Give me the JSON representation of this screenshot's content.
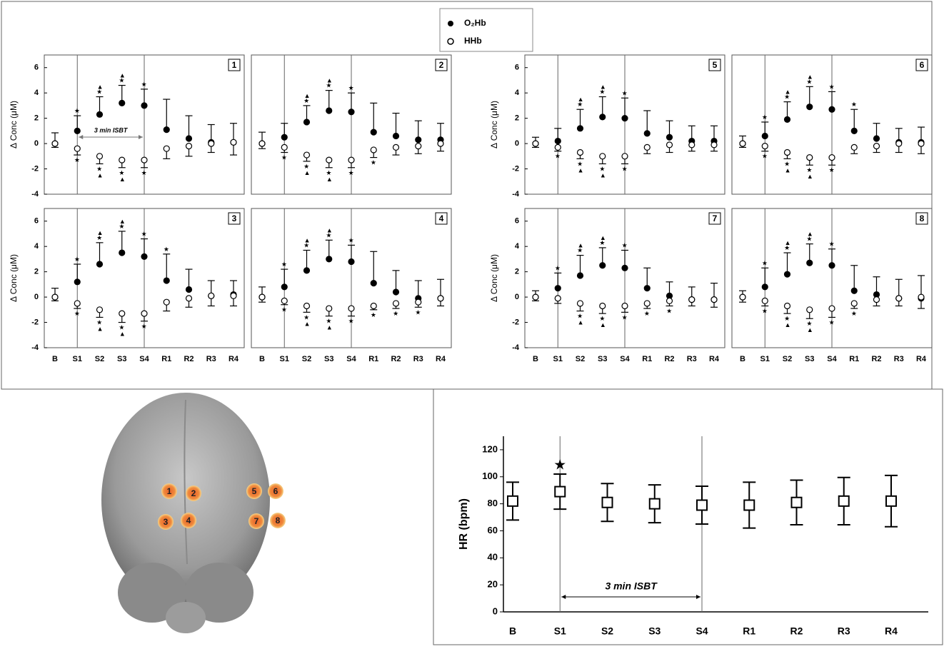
{
  "chart_data": [
    {
      "type": "errorbar",
      "panel_label": "1",
      "ylabel": "Δ Conc (μM)",
      "ylim": [
        -4,
        7
      ],
      "yticks": [
        -4,
        -2,
        0,
        2,
        4,
        6
      ],
      "vline_at": [
        1,
        4
      ],
      "annotation": "3 min ISBT",
      "series": [
        {
          "name": "O₂Hb",
          "color": "#000000",
          "marker": "filled",
          "direction": "up",
          "values": [
            0,
            1.0,
            2.3,
            3.2,
            3.0,
            1.1,
            0.4,
            0.1,
            0.1
          ],
          "errors": [
            0.85,
            1.2,
            1.4,
            1.4,
            1.3,
            2.4,
            1.8,
            1.4,
            1.5
          ],
          "significance": [
            null,
            "★",
            "▲★",
            "▲★",
            "★",
            null,
            null,
            null,
            null
          ]
        },
        {
          "name": "HHb",
          "color": "#000000",
          "marker": "open",
          "direction": "down",
          "values": [
            0,
            -0.4,
            -1.0,
            -1.3,
            -1.3,
            -0.4,
            -0.2,
            0,
            0.1
          ],
          "errors": [
            0.3,
            0.5,
            0.6,
            0.6,
            0.6,
            0.8,
            0.8,
            0.7,
            1.0
          ],
          "significance": [
            null,
            "★",
            "★▲",
            "★▲",
            "★",
            null,
            null,
            null,
            null
          ]
        }
      ]
    },
    {
      "type": "errorbar",
      "panel_label": "2",
      "ylim": [
        -4,
        7
      ],
      "vline_at": [
        1,
        4
      ],
      "series": [
        {
          "color": "#000000",
          "marker": "filled",
          "direction": "up",
          "values": [
            0,
            0.5,
            1.7,
            2.6,
            2.5,
            0.9,
            0.6,
            0.3,
            0.3
          ],
          "errors": [
            0.9,
            1.1,
            1.3,
            1.6,
            1.5,
            2.3,
            1.8,
            1.5,
            1.3
          ],
          "significance": [
            null,
            null,
            "▲★",
            "▲★",
            "★",
            null,
            null,
            null,
            null
          ]
        },
        {
          "color": "#000000",
          "marker": "open",
          "direction": "down",
          "values": [
            0,
            -0.3,
            -0.9,
            -1.3,
            -1.3,
            -0.5,
            -0.3,
            -0.2,
            0
          ],
          "errors": [
            0.4,
            0.4,
            0.5,
            0.6,
            0.6,
            0.6,
            0.6,
            0.6,
            0.6
          ],
          "significance": [
            null,
            "★",
            "★▲",
            "★▲",
            "★",
            "★",
            null,
            null,
            null
          ]
        }
      ]
    },
    {
      "type": "errorbar",
      "panel_label": "5",
      "ylabel": "Δ Conc (μM)",
      "ylim": [
        -4,
        7
      ],
      "yticks": [
        -4,
        -2,
        0,
        2,
        4,
        6
      ],
      "vline_at": [
        1,
        4
      ],
      "series": [
        {
          "color": "#000000",
          "marker": "filled",
          "direction": "up",
          "values": [
            0,
            0.2,
            1.2,
            2.1,
            2.0,
            0.8,
            0.5,
            0.2,
            0.2
          ],
          "errors": [
            0.5,
            1.0,
            1.5,
            1.6,
            1.6,
            1.8,
            1.3,
            1.2,
            1.2
          ],
          "significance": [
            null,
            null,
            "▲★",
            "▲★",
            "★",
            null,
            null,
            null,
            null
          ]
        },
        {
          "color": "#000000",
          "marker": "open",
          "direction": "down",
          "values": [
            0,
            -0.3,
            -0.7,
            -1.0,
            -1.0,
            -0.3,
            -0.1,
            -0.1,
            -0.1
          ],
          "errors": [
            0.3,
            0.3,
            0.5,
            0.6,
            0.6,
            0.5,
            0.6,
            0.5,
            0.5
          ],
          "significance": [
            null,
            "★",
            "★▲",
            "★▲",
            "★",
            null,
            null,
            null,
            null
          ]
        }
      ]
    },
    {
      "type": "errorbar",
      "panel_label": "6",
      "ylim": [
        -4,
        7
      ],
      "vline_at": [
        1,
        4
      ],
      "series": [
        {
          "color": "#000000",
          "marker": "filled",
          "direction": "up",
          "values": [
            0,
            0.6,
            1.9,
            2.9,
            2.7,
            1.0,
            0.4,
            0.1,
            0.1
          ],
          "errors": [
            0.6,
            1.1,
            1.4,
            1.6,
            1.4,
            1.7,
            1.2,
            1.1,
            1.2
          ],
          "significance": [
            null,
            "★",
            "▲★",
            "▲★",
            "★",
            "★",
            null,
            null,
            null
          ]
        },
        {
          "color": "#000000",
          "marker": "open",
          "direction": "down",
          "values": [
            0,
            -0.2,
            -0.7,
            -1.1,
            -1.1,
            -0.3,
            -0.2,
            0,
            0
          ],
          "errors": [
            0.3,
            0.4,
            0.5,
            0.6,
            0.6,
            0.5,
            0.5,
            0.7,
            0.8
          ],
          "significance": [
            null,
            "★",
            "★▲",
            "★▲",
            "★",
            null,
            null,
            null,
            null
          ]
        }
      ]
    },
    {
      "type": "errorbar",
      "panel_label": "3",
      "ylabel": "Δ Conc (μM)",
      "ylim": [
        -4,
        7
      ],
      "yticks": [
        -4,
        -2,
        0,
        2,
        4,
        6
      ],
      "vline_at": [
        1,
        4
      ],
      "categories": [
        "B",
        "S1",
        "S2",
        "S3",
        "S4",
        "R1",
        "R2",
        "R3",
        "R4"
      ],
      "series": [
        {
          "color": "#000000",
          "marker": "filled",
          "direction": "up",
          "values": [
            0,
            1.2,
            2.6,
            3.5,
            3.2,
            1.3,
            0.6,
            0.1,
            0.2
          ],
          "errors": [
            0.7,
            1.4,
            1.7,
            1.7,
            1.4,
            2.1,
            1.6,
            1.2,
            1.1
          ],
          "significance": [
            null,
            "★",
            "▲★",
            "▲★",
            "★",
            "★",
            null,
            null,
            null
          ]
        },
        {
          "color": "#000000",
          "marker": "open",
          "direction": "down",
          "values": [
            0,
            -0.5,
            -1.0,
            -1.3,
            -1.3,
            -0.4,
            -0.1,
            0.1,
            0.1
          ],
          "errors": [
            0.3,
            0.4,
            0.6,
            0.7,
            0.6,
            0.7,
            0.7,
            0.8,
            0.8
          ],
          "significance": [
            null,
            "★",
            "★▲",
            "★▲",
            "★",
            null,
            null,
            null,
            null
          ]
        }
      ]
    },
    {
      "type": "errorbar",
      "panel_label": "4",
      "ylim": [
        -4,
        7
      ],
      "vline_at": [
        1,
        4
      ],
      "categories": [
        "B",
        "S1",
        "S2",
        "S3",
        "S4",
        "R1",
        "R2",
        "R3",
        "R4"
      ],
      "series": [
        {
          "color": "#000000",
          "marker": "filled",
          "direction": "up",
          "values": [
            0,
            0.8,
            2.1,
            3.0,
            2.8,
            1.1,
            0.4,
            -0.1,
            -0.1
          ],
          "errors": [
            0.8,
            1.4,
            1.6,
            1.5,
            1.3,
            2.5,
            1.7,
            1.4,
            1.5
          ],
          "significance": [
            null,
            "★",
            "▲★",
            "▲★",
            "★",
            null,
            null,
            null,
            null
          ]
        },
        {
          "color": "#000000",
          "marker": "open",
          "direction": "down",
          "values": [
            0,
            -0.3,
            -0.7,
            -0.9,
            -0.9,
            -0.7,
            -0.5,
            -0.4,
            -0.1
          ],
          "errors": [
            0.4,
            0.3,
            0.5,
            0.6,
            0.6,
            0.3,
            0.4,
            0.4,
            0.6
          ],
          "significance": [
            null,
            "★",
            "★▲",
            "★▲",
            "★",
            "★",
            "★",
            "★",
            null
          ]
        }
      ]
    },
    {
      "type": "errorbar",
      "panel_label": "7",
      "ylabel": "Δ Conc (μM)",
      "ylim": [
        -4,
        7
      ],
      "yticks": [
        -4,
        -2,
        0,
        2,
        4,
        6
      ],
      "vline_at": [
        1,
        4
      ],
      "categories": [
        "B",
        "S1",
        "S2",
        "S3",
        "S4",
        "R1",
        "R2",
        "R3",
        "R4"
      ],
      "series": [
        {
          "color": "#000000",
          "marker": "filled",
          "direction": "up",
          "values": [
            0,
            0.7,
            1.7,
            2.5,
            2.3,
            0.7,
            0.1,
            -0.2,
            -0.2
          ],
          "errors": [
            0.5,
            1.2,
            1.6,
            1.4,
            1.4,
            1.6,
            1.1,
            1.0,
            1.3
          ],
          "significance": [
            null,
            "★",
            "▲★",
            "▲★",
            "★",
            null,
            null,
            null,
            null
          ]
        },
        {
          "color": "#000000",
          "marker": "open",
          "direction": "down",
          "values": [
            0,
            -0.1,
            -0.5,
            -0.7,
            -0.7,
            -0.5,
            -0.3,
            -0.2,
            -0.2
          ],
          "errors": [
            0.3,
            0.4,
            0.6,
            0.6,
            0.5,
            0.4,
            0.4,
            0.5,
            0.6
          ],
          "significance": [
            null,
            null,
            "★▲",
            "★▲",
            "★",
            "★",
            "★",
            null,
            null
          ]
        }
      ]
    },
    {
      "type": "errorbar",
      "panel_label": "8",
      "ylim": [
        -4,
        7
      ],
      "vline_at": [
        1,
        4
      ],
      "categories": [
        "B",
        "S1",
        "S2",
        "S3",
        "S4",
        "R1",
        "R2",
        "R3",
        "R4"
      ],
      "series": [
        {
          "color": "#000000",
          "marker": "filled",
          "direction": "up",
          "values": [
            0,
            0.8,
            1.8,
            2.7,
            2.5,
            0.5,
            0.2,
            -0.1,
            -0.1
          ],
          "errors": [
            0.5,
            1.5,
            1.7,
            1.5,
            1.3,
            2.0,
            1.4,
            1.5,
            1.8
          ],
          "significance": [
            null,
            "★",
            "▲★",
            "▲★",
            "★",
            null,
            null,
            null,
            null
          ]
        },
        {
          "color": "#000000",
          "marker": "open",
          "direction": "down",
          "values": [
            0,
            -0.3,
            -0.7,
            -1.0,
            -0.9,
            -0.5,
            -0.2,
            -0.1,
            0
          ],
          "errors": [
            0.4,
            0.4,
            0.6,
            0.7,
            0.7,
            0.4,
            0.5,
            0.6,
            0.9
          ],
          "significance": [
            null,
            "★",
            "★▲",
            "★▲",
            "★",
            "★",
            null,
            null,
            null
          ]
        }
      ]
    },
    {
      "type": "hr",
      "ylabel": "HR (bpm)",
      "ylim": [
        0,
        130
      ],
      "yticks": [
        0,
        20,
        40,
        60,
        80,
        100,
        120
      ],
      "vline_at": [
        1,
        4
      ],
      "annotation": "3 min ISBT",
      "categories": [
        "B",
        "S1",
        "S2",
        "S3",
        "S4",
        "R1",
        "R2",
        "R3",
        "R4"
      ],
      "series": [
        {
          "color": "#000000",
          "marker": "square",
          "direction": "both",
          "values": [
            82,
            89,
            81,
            80,
            79,
            79,
            81,
            82,
            82
          ],
          "errors": [
            14,
            13,
            14,
            14,
            14,
            17,
            16.5,
            17.5,
            19
          ],
          "significance": [
            null,
            "★",
            null,
            null,
            null,
            null,
            null,
            null,
            null
          ]
        }
      ]
    }
  ],
  "brain_channels": [
    "1",
    "2",
    "3",
    "4",
    "5",
    "6",
    "7",
    "8"
  ]
}
